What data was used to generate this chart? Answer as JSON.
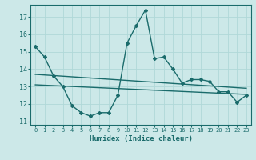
{
  "xlabel": "Humidex (Indice chaleur)",
  "bg_color": "#cce8e8",
  "line_color": "#1a6b6b",
  "grid_color": "#b0d8d8",
  "yticks": [
    11,
    12,
    13,
    14,
    15,
    16,
    17
  ],
  "xticks": [
    0,
    1,
    2,
    3,
    4,
    5,
    6,
    7,
    8,
    9,
    10,
    11,
    12,
    13,
    14,
    15,
    16,
    17,
    18,
    19,
    20,
    21,
    22,
    23
  ],
  "series1_x": [
    0,
    1,
    2,
    3,
    4,
    5,
    6,
    7,
    8,
    9,
    10,
    11,
    12,
    13,
    14,
    15,
    16,
    17,
    18,
    19,
    20,
    21,
    22,
    23
  ],
  "series1_y": [
    15.3,
    14.7,
    13.6,
    13.0,
    11.9,
    11.5,
    11.3,
    11.5,
    11.5,
    12.5,
    15.5,
    16.5,
    17.4,
    14.6,
    14.7,
    14.0,
    13.2,
    13.4,
    13.4,
    13.3,
    12.7,
    12.7,
    12.1,
    12.5
  ],
  "trend1_x": [
    0,
    23
  ],
  "trend1_y": [
    13.7,
    12.9
  ],
  "trend2_x": [
    0,
    23
  ],
  "trend2_y": [
    13.1,
    12.55
  ]
}
